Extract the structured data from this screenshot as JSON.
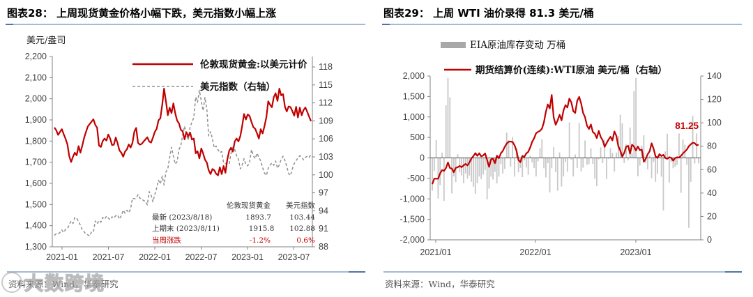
{
  "colors": {
    "red": "#c00000",
    "gray_line": "#8f8f8f",
    "bar_gray": "#c8c8c8",
    "legend_bar_gray": "#a8a8a8",
    "axis": "#808080",
    "tick_text": "#404040",
    "zero_line": "#4d4d4d",
    "rule_light": "#a3b9d4",
    "rule_dark": "#4e74a4"
  },
  "left_panel": {
    "title": "图表28：  上周现货黄金价格小幅下跌，美元指数小幅上涨",
    "source": "资料来源：Wind，华泰研究",
    "table": {
      "headers": [
        "伦敦现货黄金",
        "美元指数"
      ],
      "rows": [
        {
          "label": "最新 (2023/8/18)",
          "v1": "1893.7",
          "v2": "103.44",
          "red": false
        },
        {
          "label": "上期末 (2023/8/11)",
          "v1": "1915.8",
          "v2": "102.88",
          "red": false
        },
        {
          "label": "当周涨跌",
          "v1": "-1.2%",
          "v2": "0.6%",
          "red": true
        }
      ]
    }
  },
  "right_panel": {
    "title": "图表29：  上周 WTI 油价录得 81.3 美元/桶",
    "source": "资料来源：Wind，华泰研究"
  },
  "watermark": {
    "logo": "100",
    "text": "大数跨境"
  },
  "chart_data": [
    {
      "type": "line",
      "title": "上周现货黄金价格小幅下跌，美元指数小幅上涨",
      "x_ticks": [
        "2021-01",
        "2021-07",
        "2022-01",
        "2022-07",
        "2023-01",
        "2023-07"
      ],
      "y_left": {
        "label": "美元/盎司",
        "min": 1300,
        "max": 2200,
        "ticks": [
          "2,200",
          "2,100",
          "2,000",
          "1,900",
          "1,800",
          "1,700",
          "1,600",
          "1,500",
          "1,400",
          "1,300"
        ]
      },
      "y_right": {
        "min": 88,
        "max": 118,
        "ticks": [
          "118",
          "115",
          "112",
          "109",
          "106",
          "103",
          "100",
          "97",
          "94",
          "91",
          "88"
        ]
      },
      "legend_position": "top",
      "grid": false,
      "series": [
        {
          "name": "伦敦现货黄金:以美元计价",
          "axis": "left",
          "style": "solid",
          "color": "#c00000",
          "values": [
            1864,
            1851,
            1829,
            1843,
            1856,
            1833,
            1811,
            1784,
            1729,
            1701,
            1726,
            1745,
            1733,
            1776,
            1745,
            1778,
            1816,
            1843,
            1869,
            1881,
            1892,
            1903,
            1876,
            1863,
            1779,
            1772,
            1800,
            1812,
            1802,
            1831,
            1812,
            1781,
            1783,
            1817,
            1789,
            1756,
            1745,
            1726,
            1750,
            1761,
            1784,
            1769,
            1792,
            1845,
            1862,
            1791,
            1783,
            1787,
            1798,
            1808,
            1818,
            1798,
            1793,
            1816,
            1843,
            1858,
            1898,
            1908,
            1972,
            2048,
            1988,
            1922,
            1958,
            1932,
            1978,
            1932,
            1897,
            1884,
            1854,
            1846,
            1808,
            1842,
            1822,
            1840,
            1807,
            1812,
            1742,
            1752,
            1718,
            1765,
            1742,
            1712,
            1698,
            1662,
            1644,
            1668,
            1662,
            1645,
            1638,
            1676,
            1644,
            1682,
            1650,
            1712,
            1754,
            1768,
            1750,
            1798,
            1812,
            1798,
            1824,
            1870,
            1928,
            1902,
            1926,
            1918,
            1890,
            1866,
            1858,
            1836,
            1812,
            1856,
            1836,
            1870,
            1912,
            1988,
            1972,
            1960,
            2008,
            2026,
            1990,
            2048,
            2016,
            2022,
            1962,
            1940,
            1964,
            1960,
            1942,
            1920,
            1962,
            1912,
            1958,
            1922,
            1946,
            1959,
            1938,
            1916,
            1894
          ]
        },
        {
          "name": "美元指数（右轴）",
          "axis": "right",
          "style": "dashed",
          "color": "#8f8f8f",
          "values": [
            89.9,
            90.2,
            90.1,
            90.4,
            90.8,
            90.4,
            90.9,
            91.0,
            91.7,
            92.3,
            91.9,
            92.9,
            92.8,
            92.2,
            91.6,
            90.8,
            90.5,
            90.1,
            90.0,
            89.8,
            90.5,
            90.5,
            92.3,
            91.8,
            92.4,
            92.1,
            92.9,
            92.6,
            93.1,
            92.8,
            92.5,
            93.0,
            92.8,
            93.2,
            93.3,
            92.6,
            93.2,
            94.1,
            93.6,
            94.1,
            93.7,
            94.3,
            96.1,
            96.0,
            96.1,
            96.7,
            96.1,
            96.0,
            95.7,
            95.6,
            95.0,
            97.2,
            96.6,
            95.5,
            96.7,
            97.8,
            99.1,
            98.5,
            99.8,
            98.3,
            100.5,
            101.0,
            102.9,
            104.6,
            103.1,
            101.8,
            102.2,
            104.2,
            104.9,
            106.6,
            108.1,
            106.7,
            105.8,
            108.0,
            108.8,
            109.6,
            113.0,
            112.1,
            114.1,
            112.3,
            110.7,
            112.9,
            110.9,
            106.5,
            107.2,
            106.0,
            104.5,
            104.8,
            104.2,
            103.7,
            103.9,
            102.0,
            101.9,
            102.0,
            101.8,
            103.6,
            104.6,
            104.2,
            103.2,
            102.6,
            101.0,
            101.6,
            102.7,
            101.7,
            101.5,
            102.1,
            104.2,
            103.2,
            102.7,
            103.6,
            102.9,
            102.3,
            101.2,
            100.3,
            99.9,
            101.1,
            101.6,
            102.0,
            101.6,
            102.3,
            101.1,
            101.7,
            102.6,
            103.1,
            102.4,
            101.4,
            100.2,
            99.9,
            101.0,
            101.9,
            102.4,
            102.8,
            103.2,
            103.0,
            102.5,
            102.9,
            103.1,
            102.9,
            103.4
          ]
        }
      ],
      "stats_table": {
        "headers": [
          "伦敦现货黄金",
          "美元指数"
        ],
        "latest": {
          "label": "最新 (2023/8/18)",
          "gold": 1893.7,
          "dxy": 103.44
        },
        "previous": {
          "label": "上期末 (2023/8/11)",
          "gold": 1915.8,
          "dxy": 102.88
        },
        "wow_change": {
          "label": "当周涨跌",
          "gold": "-1.2%",
          "dxy": "0.6%"
        }
      }
    },
    {
      "type": "bar+line",
      "title": "上周 WTI 油价录得 81.3 美元/桶",
      "x_ticks": [
        "2021/01",
        "2022/01",
        "2023/01"
      ],
      "y_left": {
        "min": -2000,
        "max": 2000,
        "ticks": [
          "2,000",
          "1,500",
          "1,000",
          "500",
          "0",
          "-500",
          "-1,000",
          "-1,500",
          "-2,000"
        ]
      },
      "y_right": {
        "min": 0,
        "max": 140,
        "ticks": [
          "140",
          "120",
          "100",
          "80",
          "60",
          "40",
          "20",
          "0"
        ]
      },
      "annotation": {
        "text": "81.25",
        "color": "#c00000"
      },
      "grid": false,
      "series": [
        {
          "name": "EIA原油库存变动 万桶",
          "type": "bar",
          "axis": "left",
          "color": "#c8c8c8",
          "values": [
            -800,
            -321,
            436,
            -991,
            -662,
            128,
            -1048,
            1285,
            1954,
            1480,
            -868,
            -452,
            -589,
            91,
            -346,
            -428,
            -617,
            -382,
            -502,
            -427,
            -583,
            -702,
            -876,
            -616,
            -452,
            -521,
            -408,
            -298,
            -1012,
            -748,
            -458,
            -528,
            -341,
            -622,
            -457,
            -151,
            -384,
            -269,
            618,
            432,
            -214,
            512,
            -457,
            231,
            -352,
            -243,
            -468,
            -59,
            -233,
            -412,
            52,
            -108,
            -246,
            -452,
            -87,
            238,
            452,
            -251,
            -476,
            -128,
            -843,
            -252,
            262,
            -348,
            -802,
            134,
            -698,
            -452,
            -102,
            -338,
            868,
            -46,
            -452,
            82,
            -246,
            854,
            -332,
            -238,
            426,
            -168,
            -152,
            234,
            -146,
            -512,
            -692,
            -34,
            258,
            -128,
            442,
            -514,
            -22,
            236,
            118,
            -336,
            128,
            534,
            1055,
            842,
            -128,
            328,
            -62,
            742,
            118,
            1628,
            1954,
            -448,
            -188,
            298,
            554,
            -124,
            -282,
            58,
            -496,
            -98,
            -582,
            -388,
            102,
            -458,
            -1282,
            158,
            592,
            -602,
            -96,
            -252,
            -216,
            -168,
            598,
            -852,
            446,
            322,
            -168,
            -1705,
            -585,
            1022,
            -136,
            598,
            -132
          ]
        },
        {
          "name": "期货结算价(连续):WTI原油 美元/桶（右轴）",
          "type": "line",
          "axis": "right",
          "color": "#c00000",
          "values": [
            47.6,
            52.2,
            52.3,
            52.2,
            56.8,
            59.5,
            59.0,
            61.5,
            66.1,
            61.4,
            60.9,
            57.8,
            61.5,
            62.1,
            63.1,
            62.1,
            63.6,
            64.9,
            63.6,
            66.3,
            69.6,
            71.6,
            74.1,
            71.8,
            74.0,
            71.3,
            72.1,
            73.9,
            68.3,
            62.3,
            68.7,
            69.3,
            65.5,
            71.9,
            69.7,
            73.9,
            75.9,
            79.4,
            82.3,
            83.8,
            84.0,
            83.6,
            80.8,
            76.1,
            68.2,
            66.3,
            71.7,
            70.9,
            73.8,
            75.2,
            78.9,
            83.8,
            86.8,
            91.1,
            92.3,
            93.1,
            95.0,
            100.4,
            109.3,
            115.7,
            112.3,
            123.8,
            104.7,
            98.3,
            102.1,
            106.9,
            102.1,
            110.5,
            115.1,
            113.1,
            120.7,
            117.6,
            110.0,
            108.4,
            118.9,
            122.1,
            116.6,
            108.4,
            104.8,
            97.6,
            94.7,
            98.6,
            92.1,
            90.8,
            86.9,
            93.1,
            87.8,
            85.1,
            79.5,
            82.6,
            85.6,
            88.1,
            85.0,
            92.6,
            88.9,
            80.1,
            76.3,
            71.0,
            74.3,
            79.6,
            80.3,
            73.7,
            81.3,
            79.7,
            76.3,
            79.7,
            76.6,
            77.1,
            66.7,
            69.3,
            73.2,
            75.7,
            82.5,
            77.9,
            71.3,
            70.0,
            73.2,
            71.6,
            72.7,
            69.9,
            69.2,
            70.6,
            70.1,
            67.6,
            69.9,
            70.6,
            70.2,
            71.8,
            73.9,
            75.4,
            77.1,
            80.0,
            81.6,
            83.0,
            82.6,
            80.8,
            81.25
          ]
        }
      ]
    }
  ]
}
